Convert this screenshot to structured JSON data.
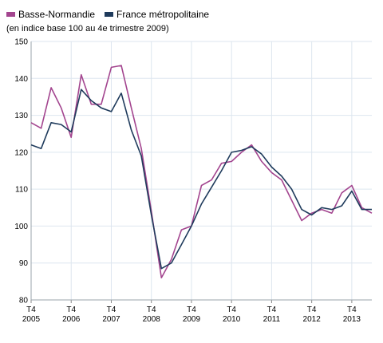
{
  "chart_data": {
    "type": "line",
    "subtitle": "(en indice base 100 au 4e trimestre 2009)",
    "ylim": [
      80,
      150
    ],
    "yticks": [
      80,
      90,
      100,
      110,
      120,
      130,
      140,
      150
    ],
    "x_tick_labels": [
      [
        "T4",
        "2005"
      ],
      [
        "T4",
        "2006"
      ],
      [
        "T4",
        "2007"
      ],
      [
        "T4",
        "2008"
      ],
      [
        "T4",
        "2009"
      ],
      [
        "T4",
        "2010"
      ],
      [
        "T4",
        "2011"
      ],
      [
        "T4",
        "2012"
      ],
      [
        "T4",
        "2013"
      ]
    ],
    "x": [
      "2005-T4",
      "2006-T1",
      "2006-T2",
      "2006-T3",
      "2006-T4",
      "2007-T1",
      "2007-T2",
      "2007-T3",
      "2007-T4",
      "2008-T1",
      "2008-T2",
      "2008-T3",
      "2008-T4",
      "2009-T1",
      "2009-T2",
      "2009-T3",
      "2009-T4",
      "2010-T1",
      "2010-T2",
      "2010-T3",
      "2010-T4",
      "2011-T1",
      "2011-T2",
      "2011-T3",
      "2011-T4",
      "2012-T1",
      "2012-T2",
      "2012-T3",
      "2012-T4",
      "2013-T1",
      "2013-T2",
      "2013-T3",
      "2013-T4",
      "2014-T1",
      "2014-T2"
    ],
    "grid": true,
    "legend_position": "top-left",
    "series": [
      {
        "name": "Basse-Normandie",
        "color": "#a3458f",
        "values": [
          128,
          126.5,
          137.5,
          132,
          124,
          141,
          133,
          133,
          143,
          143.5,
          132,
          121,
          104,
          86,
          91,
          99,
          100,
          111,
          112.5,
          117,
          117.5,
          120,
          122,
          117.5,
          114.5,
          112.5,
          107,
          101.5,
          103.5,
          104.5,
          103.5,
          109,
          111,
          105,
          103.5
        ]
      },
      {
        "name": "France métropolitaine",
        "color": "#1f3b5c",
        "values": [
          122,
          121,
          128,
          127.5,
          125.5,
          137,
          134,
          132,
          131,
          136,
          126,
          119,
          103,
          88.5,
          90,
          95,
          100,
          106,
          110.5,
          115,
          120,
          120.5,
          121.5,
          119.5,
          116,
          113.5,
          110,
          104.5,
          103,
          105,
          104.5,
          105.5,
          109.5,
          104.5,
          104.5
        ]
      }
    ]
  }
}
